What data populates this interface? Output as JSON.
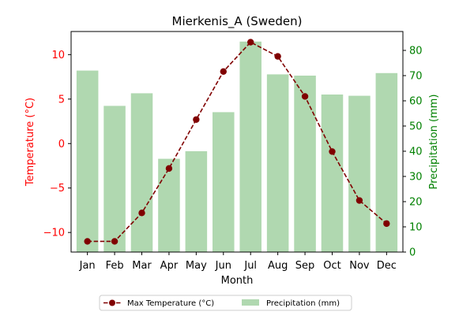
{
  "chart_data": {
    "type": "bar+line",
    "title": "Mierkenis_A (Sweden)",
    "xlabel": "Month",
    "categories": [
      "Jan",
      "Feb",
      "Mar",
      "Apr",
      "May",
      "Jun",
      "Jul",
      "Aug",
      "Sep",
      "Oct",
      "Nov",
      "Dec"
    ],
    "left_axis": {
      "label": "Temperature (°C)",
      "ylim": [
        -12.2,
        12.6
      ],
      "ticks": [
        -10,
        -5,
        0,
        5,
        10
      ],
      "color": "#ff0000"
    },
    "right_axis": {
      "label": "Precipitation (mm)",
      "ylim": [
        0,
        87.5
      ],
      "ticks": [
        0,
        10,
        20,
        30,
        40,
        50,
        60,
        70,
        80
      ],
      "color": "#008000"
    },
    "series": [
      {
        "name": "Max Temperature (°C)",
        "type": "line",
        "axis": "left",
        "color": "#800000",
        "style": "dashed-with-circle-markers",
        "values": [
          -11.0,
          -11.0,
          -7.8,
          -2.8,
          2.7,
          8.1,
          11.4,
          9.8,
          5.3,
          -0.9,
          -6.4,
          -9.0
        ]
      },
      {
        "name": "Precipitation (mm)",
        "type": "bar",
        "axis": "right",
        "color": "#b0d8b0",
        "values": [
          72.0,
          58.0,
          63.0,
          37.0,
          40.0,
          55.5,
          83.5,
          70.5,
          70.0,
          62.5,
          62.0,
          71.0
        ]
      }
    ],
    "legend": {
      "placement": "bottom-center",
      "entries": [
        "Max Temperature (°C)",
        "Precipitation (mm)"
      ]
    },
    "grid": false
  }
}
